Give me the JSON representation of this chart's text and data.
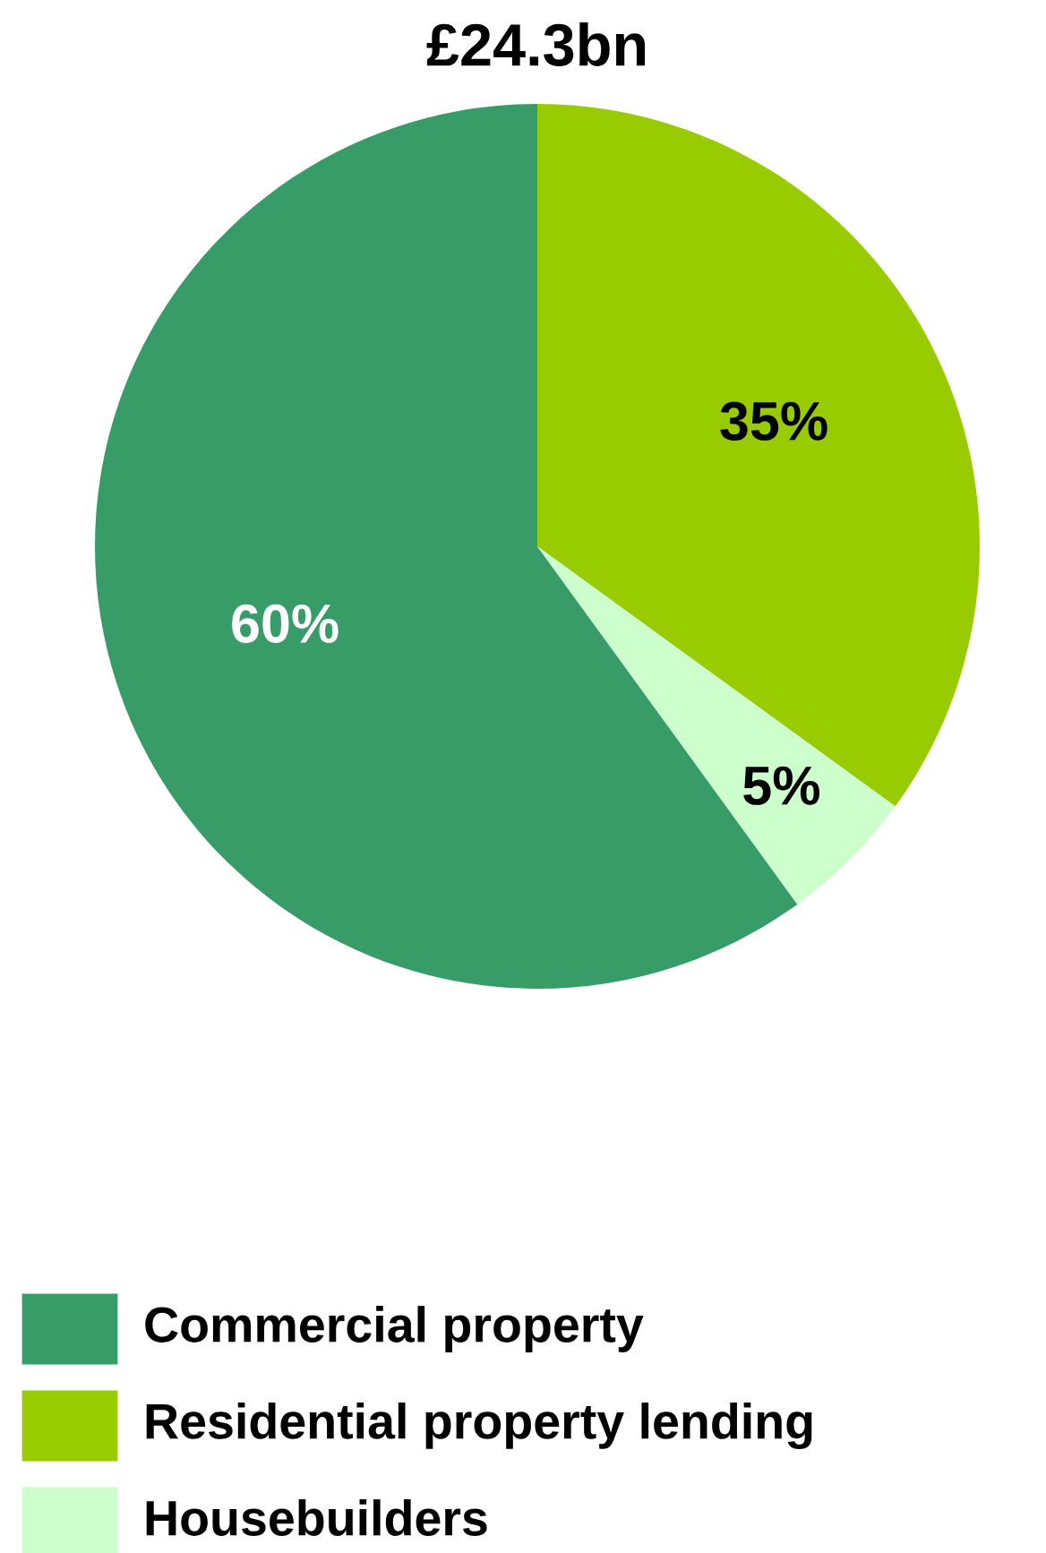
{
  "chart_data": {
    "type": "pie",
    "title": "£24.3bn",
    "categories": [
      "Commercial property",
      "Residential property lending",
      "Housebuilders"
    ],
    "values": [
      60,
      35,
      5
    ],
    "colors": [
      "#389c68",
      "#99cc00",
      "#ccffcc"
    ],
    "value_labels": [
      "60%",
      "35%",
      "5%"
    ],
    "legend": "bottom left"
  }
}
